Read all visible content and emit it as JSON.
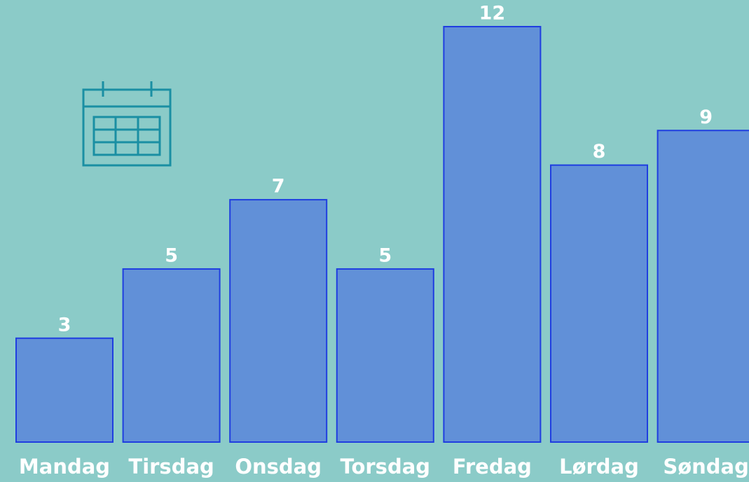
{
  "chart_data": {
    "type": "bar",
    "categories": [
      "Mandag",
      "Tirsdag",
      "Onsdag",
      "Torsdag",
      "Fredag",
      "Lørdag",
      "Søndag"
    ],
    "values": [
      3,
      5,
      7,
      5,
      12,
      8,
      9
    ],
    "color": "#6190d8",
    "ylim": [
      0,
      12
    ]
  }
}
